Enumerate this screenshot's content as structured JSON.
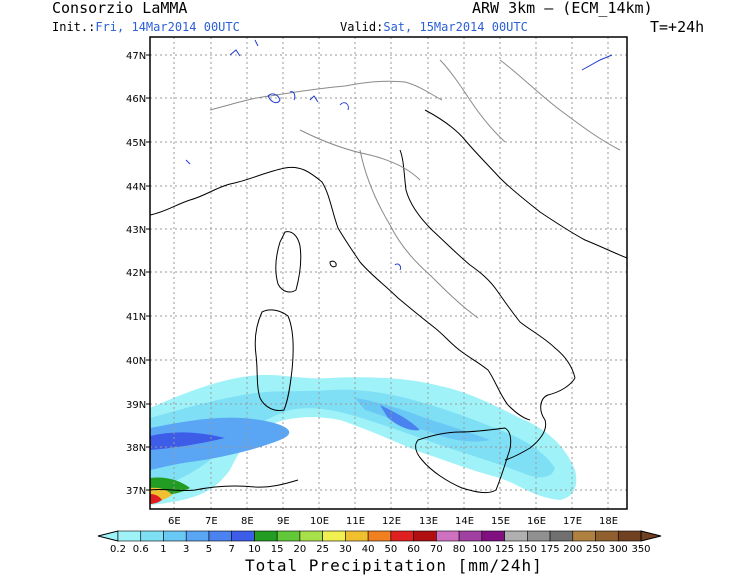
{
  "header": {
    "org": "Consorzio LaMMA",
    "init_label": "Init.:",
    "init_value": "Fri, 14Mar2014 00UTC",
    "valid_label": "Valid:",
    "valid_value": "Sat, 15Mar2014 00UTC",
    "model": "ARW 3km – (ECM_14km)",
    "lead": "T=+24h"
  },
  "map": {
    "lat_labels": [
      "47N",
      "46N",
      "45N",
      "44N",
      "43N",
      "42N",
      "41N",
      "40N",
      "39N",
      "38N",
      "37N"
    ],
    "lon_labels": [
      "6E",
      "7E",
      "8E",
      "9E",
      "10E",
      "11E",
      "12E",
      "13E",
      "14E",
      "15E",
      "16E",
      "17E",
      "18E"
    ],
    "grid": true
  },
  "legend": {
    "title": "Total Precipitation [mm/24h]",
    "values": [
      "0.2",
      "0.6",
      "1",
      "3",
      "5",
      "7",
      "10",
      "15",
      "20",
      "25",
      "30",
      "40",
      "50",
      "60",
      "70",
      "80",
      "100",
      "125",
      "150",
      "175",
      "200",
      "250",
      "300",
      "350"
    ],
    "colors": [
      "#9ff3f8",
      "#7fe0f5",
      "#6ac8f5",
      "#5aa6f5",
      "#4a82f0",
      "#3d5ce8",
      "#239c23",
      "#62c83a",
      "#a8e04a",
      "#f0f050",
      "#f0c030",
      "#f08020",
      "#e02020",
      "#b01010",
      "#d070c0",
      "#a040a0",
      "#801080",
      "#b0b0b0",
      "#909090",
      "#707070",
      "#b08040",
      "#906030",
      "#704020"
    ]
  }
}
